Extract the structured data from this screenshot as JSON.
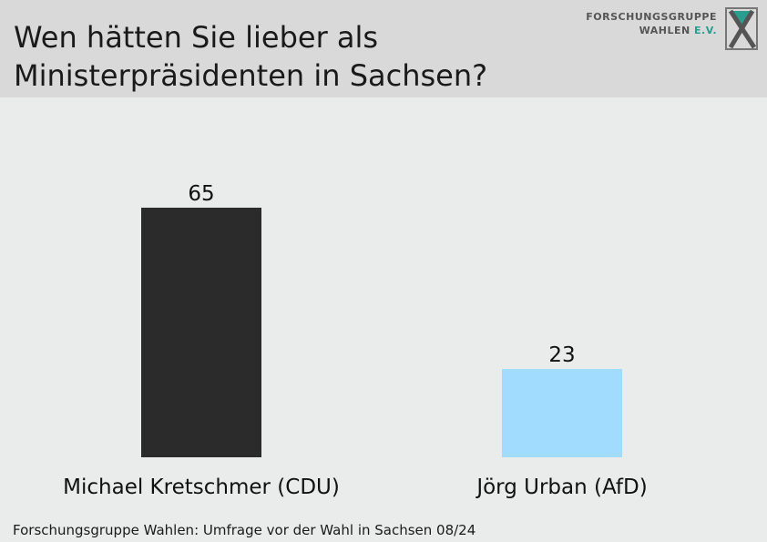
{
  "header": {
    "title_line1": "Wen hätten Sie lieber als",
    "title_line2": "Ministerpräsidenten in Sachsen?",
    "logo_line1": "FORSCHUNGSGRUPPE",
    "logo_line2_main": "WAHLEN",
    "logo_line2_accent": "E.V."
  },
  "chart_data": {
    "type": "bar",
    "title": "Wen hätten Sie lieber als Ministerpräsidenten in Sachsen?",
    "categories": [
      "Michael Kretschmer (CDU)",
      "Jörg Urban (AfD)"
    ],
    "values": [
      65,
      23
    ],
    "colors": [
      "#2b2b2b",
      "#a1dbfd"
    ],
    "ylim": [
      0,
      100
    ],
    "grid": false,
    "legend": "none"
  },
  "footer": {
    "source": "Forschungsgruppe Wahlen: Umfrage vor der Wahl in Sachsen 08/24"
  },
  "colors": {
    "header_bg": "#d9d9d9",
    "plot_bg": "#e9ecea",
    "logo_accent": "#2a9d8f"
  }
}
